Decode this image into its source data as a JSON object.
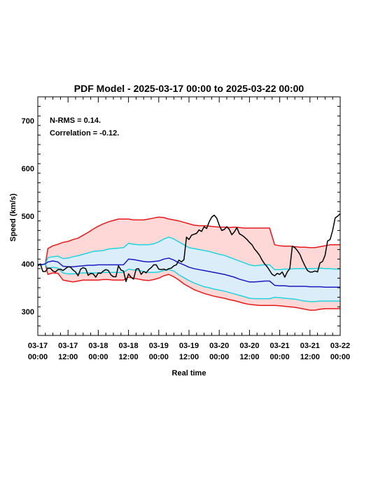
{
  "chart_data": {
    "type": "line",
    "title": "PDF Model - 2025-03-17 00:00 to 2025-03-22 00:00",
    "xlabel": "Real time",
    "ylabel": "Speed (km/s)",
    "xlim": [
      0,
      120
    ],
    "ylim": [
      250,
      750
    ],
    "y_ticks": [
      300,
      400,
      500,
      600,
      700
    ],
    "x_ticks": [
      {
        "t": 0,
        "date": "03-17",
        "time": "00:00"
      },
      {
        "t": 12,
        "date": "03-17",
        "time": "12:00"
      },
      {
        "t": 24,
        "date": "03-18",
        "time": "00:00"
      },
      {
        "t": 36,
        "date": "03-18",
        "time": "12:00"
      },
      {
        "t": 48,
        "date": "03-19",
        "time": "00:00"
      },
      {
        "t": 60,
        "date": "03-19",
        "time": "12:00"
      },
      {
        "t": 72,
        "date": "03-20",
        "time": "00:00"
      },
      {
        "t": 84,
        "date": "03-20",
        "time": "12:00"
      },
      {
        "t": 96,
        "date": "03-21",
        "time": "00:00"
      },
      {
        "t": 108,
        "date": "03-21",
        "time": "12:00"
      },
      {
        "t": 120,
        "date": "03-22",
        "time": "00:00"
      }
    ],
    "annotations": [
      "N-RMS = 0.14.",
      "Correlation = -0.12."
    ],
    "colors": {
      "outer_band_fill": "#fdd8d6",
      "inner_band_fill": "#dcedfa",
      "outer_bounds": "#e41a1c",
      "inner_bounds": "#22d3dd",
      "median": "#1a1ac0",
      "observed": "#000000"
    },
    "series": [
      {
        "role": "outer_upper",
        "x": [
          0,
          2,
          3,
          4,
          6,
          8,
          10,
          12,
          14,
          16,
          18,
          20,
          22,
          24,
          26,
          28,
          30,
          32,
          34,
          36,
          38,
          40,
          42,
          44,
          46,
          48,
          50,
          52,
          54,
          56,
          58,
          60,
          62,
          64,
          66,
          68,
          70,
          72,
          74,
          76,
          78,
          80,
          82,
          84,
          86,
          88,
          90,
          92,
          94,
          96,
          98,
          100,
          102,
          104,
          106,
          108,
          110,
          112,
          114,
          116,
          118,
          120
        ],
        "y": [
          397,
          398,
          400,
          432,
          438,
          441,
          445,
          447,
          451,
          454,
          460,
          466,
          473,
          479,
          484,
          488,
          491,
          494,
          494,
          494,
          492,
          492,
          492,
          494,
          496,
          498,
          497,
          494,
          492,
          490,
          487,
          484,
          481,
          480,
          480,
          479,
          478,
          477,
          477,
          476,
          477,
          476,
          475,
          475,
          475,
          475,
          475,
          475,
          440,
          438,
          437,
          437,
          436,
          435,
          435,
          434,
          434,
          436,
          438,
          440,
          440,
          440
        ]
      },
      {
        "role": "inner_upper",
        "x": [
          0,
          2,
          3,
          4,
          6,
          8,
          10,
          12,
          14,
          16,
          18,
          20,
          22,
          24,
          26,
          28,
          30,
          32,
          34,
          36,
          38,
          40,
          42,
          44,
          46,
          48,
          50,
          52,
          54,
          56,
          58,
          60,
          62,
          64,
          66,
          68,
          70,
          72,
          74,
          76,
          78,
          80,
          82,
          84,
          86,
          88,
          90,
          92,
          94,
          96,
          98,
          100,
          102,
          104,
          106,
          108,
          110,
          112,
          114,
          116,
          118,
          120
        ],
        "y": [
          397,
          398,
          400,
          413,
          415,
          416,
          411,
          412,
          415,
          417,
          420,
          423,
          426,
          427,
          428,
          431,
          432,
          433,
          434,
          443,
          441,
          440,
          440,
          440,
          442,
          446,
          452,
          456,
          452,
          446,
          440,
          434,
          432,
          430,
          428,
          426,
          423,
          420,
          418,
          414,
          410,
          406,
          402,
          398,
          396,
          397,
          398,
          398,
          388,
          388,
          389,
          389,
          390,
          390,
          390,
          390,
          390,
          391,
          390,
          390,
          389,
          389
        ]
      },
      {
        "role": "median",
        "x": [
          0,
          2,
          3,
          4,
          6,
          8,
          10,
          12,
          14,
          16,
          18,
          20,
          22,
          24,
          26,
          28,
          30,
          32,
          34,
          36,
          38,
          40,
          42,
          44,
          46,
          48,
          50,
          52,
          54,
          56,
          58,
          60,
          62,
          64,
          66,
          68,
          70,
          72,
          74,
          76,
          78,
          80,
          82,
          84,
          86,
          88,
          90,
          92,
          94,
          96,
          98,
          100,
          102,
          104,
          106,
          108,
          110,
          112,
          114,
          116,
          118,
          120
        ],
        "y": [
          399,
          399,
          400,
          404,
          406,
          404,
          395,
          394,
          394,
          395,
          396,
          397,
          397,
          398,
          398,
          398,
          398,
          398,
          398,
          410,
          409,
          407,
          405,
          404,
          405,
          406,
          410,
          412,
          408,
          402,
          398,
          393,
          390,
          388,
          386,
          384,
          382,
          380,
          378,
          375,
          372,
          368,
          365,
          362,
          362,
          363,
          364,
          364,
          355,
          354,
          354,
          353,
          353,
          353,
          353,
          352,
          352,
          352,
          351,
          351,
          351,
          351
        ]
      },
      {
        "role": "inner_lower",
        "x": [
          0,
          2,
          3,
          4,
          6,
          8,
          10,
          12,
          14,
          16,
          18,
          20,
          22,
          24,
          26,
          28,
          30,
          32,
          34,
          36,
          38,
          40,
          42,
          44,
          46,
          48,
          50,
          52,
          54,
          56,
          58,
          60,
          62,
          64,
          66,
          68,
          70,
          72,
          74,
          76,
          78,
          80,
          82,
          84,
          86,
          88,
          90,
          92,
          94,
          96,
          98,
          100,
          102,
          104,
          106,
          108,
          110,
          112,
          114,
          116,
          118,
          120
        ],
        "y": [
          399,
          399,
          399,
          390,
          393,
          391,
          381,
          379,
          379,
          380,
          381,
          381,
          381,
          381,
          382,
          382,
          382,
          382,
          382,
          389,
          387,
          386,
          384,
          382,
          382,
          383,
          386,
          388,
          385,
          377,
          371,
          365,
          360,
          356,
          352,
          350,
          347,
          345,
          343,
          340,
          337,
          334,
          331,
          328,
          327,
          327,
          327,
          327,
          330,
          329,
          328,
          327,
          326,
          324,
          322,
          321,
          321,
          322,
          322,
          322,
          322,
          322
        ]
      },
      {
        "role": "outer_lower",
        "x": [
          0,
          2,
          3,
          4,
          6,
          8,
          10,
          12,
          14,
          16,
          18,
          20,
          22,
          24,
          26,
          28,
          30,
          32,
          34,
          36,
          38,
          40,
          42,
          44,
          46,
          48,
          50,
          52,
          54,
          56,
          58,
          60,
          62,
          64,
          66,
          68,
          70,
          72,
          74,
          76,
          78,
          80,
          82,
          84,
          86,
          88,
          90,
          92,
          94,
          96,
          98,
          100,
          102,
          104,
          106,
          108,
          110,
          112,
          114,
          116,
          118,
          120
        ],
        "y": [
          399,
          399,
          399,
          378,
          381,
          380,
          366,
          364,
          362,
          364,
          366,
          366,
          366,
          366,
          367,
          367,
          366,
          366,
          366,
          372,
          370,
          368,
          366,
          365,
          367,
          370,
          375,
          378,
          373,
          366,
          358,
          352,
          346,
          342,
          338,
          335,
          332,
          330,
          328,
          325,
          323,
          320,
          317,
          315,
          314,
          313,
          313,
          313,
          313,
          312,
          311,
          310,
          309,
          307,
          305,
          303,
          303,
          305,
          306,
          306,
          306,
          306
        ]
      },
      {
        "role": "observed",
        "x": [
          0,
          1,
          2,
          3,
          4,
          5,
          6,
          7,
          8,
          9,
          10,
          11,
          12,
          13,
          14,
          15,
          16,
          17,
          18,
          19,
          20,
          21,
          22,
          23,
          24,
          25,
          26,
          27,
          28,
          29,
          30,
          31,
          32,
          33,
          34,
          35,
          36,
          37,
          38,
          39,
          40,
          41,
          42,
          43,
          44,
          45,
          46,
          47,
          48,
          49,
          50,
          51,
          52,
          53,
          54,
          55,
          56,
          57,
          58,
          59,
          60,
          61,
          62,
          63,
          64,
          65,
          66,
          67,
          68,
          69,
          70,
          71,
          72,
          73,
          74,
          75,
          76,
          77,
          78,
          79,
          80,
          81,
          82,
          83,
          84,
          85,
          86,
          87,
          88,
          89,
          90,
          91,
          92,
          93,
          94,
          95,
          96,
          97,
          98,
          99,
          100,
          101,
          102,
          103,
          104,
          105,
          106,
          107,
          108,
          109,
          110,
          111,
          112,
          113,
          114,
          115,
          116,
          117,
          118,
          119,
          120
        ],
        "y": [
          396,
          400,
          384,
          384,
          391,
          391,
          385,
          383,
          388,
          389,
          386,
          390,
          394,
          393,
          387,
          383,
          375,
          389,
          392,
          390,
          376,
          380,
          379,
          372,
          381,
          380,
          385,
          388,
          386,
          377,
          373,
          373,
          396,
          387,
          385,
          363,
          379,
          372,
          368,
          389,
          390,
          378,
          384,
          381,
          388,
          392,
          398,
          398,
          389,
          388,
          389,
          387,
          390,
          391,
          396,
          398,
          408,
          404,
          409,
          456,
          451,
          460,
          462,
          464,
          471,
          468,
          478,
          474,
          488,
          498,
          502,
          496,
          481,
          470,
          472,
          478,
          472,
          461,
          467,
          476,
          463,
          460,
          456,
          451,
          445,
          440,
          431,
          425,
          418,
          408,
          400,
          394,
          386,
          378,
          375,
          380,
          378,
          383,
          372,
          383,
          390,
          437,
          434,
          428,
          420,
          407,
          396,
          386,
          383,
          383,
          385,
          383,
          402,
          405,
          418,
          448,
          451,
          470,
          496,
          500,
          505
        ]
      }
    ]
  }
}
